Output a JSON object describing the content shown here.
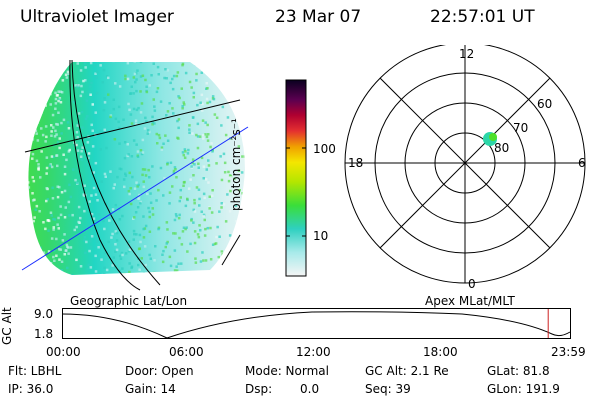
{
  "header": {
    "title": "Ultraviolet Imager",
    "date": "23 Mar 07",
    "time": "22:57:01 UT"
  },
  "colorbar": {
    "unit_label": "photon cm⁻²s⁻¹",
    "ticks": [
      "100",
      "10"
    ]
  },
  "polar_plot": {
    "mlt_labels": {
      "top": "12",
      "left": "18",
      "right": "6",
      "bottom": "0"
    },
    "lat_labels": [
      "60",
      "70",
      "80"
    ]
  },
  "map_labels": {
    "left": "Geographic Lat/Lon",
    "right": "Apex MLat/MLT"
  },
  "altitude_plot": {
    "ylabel": "GC Alt",
    "ytick_top": "9.0",
    "ytick_bottom": "1.8",
    "xticks": [
      "00:00",
      "06:00",
      "12:00",
      "18:00",
      "23:59"
    ],
    "current_time_marker_fraction": 0.957
  },
  "info": {
    "flt": "Flt: LBHL",
    "ip": "IP: 36.0",
    "door": "Door: Open",
    "gain": "Gain: 14",
    "mode": "Mode: Normal",
    "dsp_label": "Dsp:",
    "dsp_value": "0.0",
    "gc_alt": "GC Alt: 2.1 Re",
    "seq": "Seq: 39",
    "glat": "GLat:  81.8",
    "glon": "GLon: 191.9"
  },
  "colors": {
    "marker_red": "#cc2222",
    "blue_line": "#1a2cff"
  }
}
